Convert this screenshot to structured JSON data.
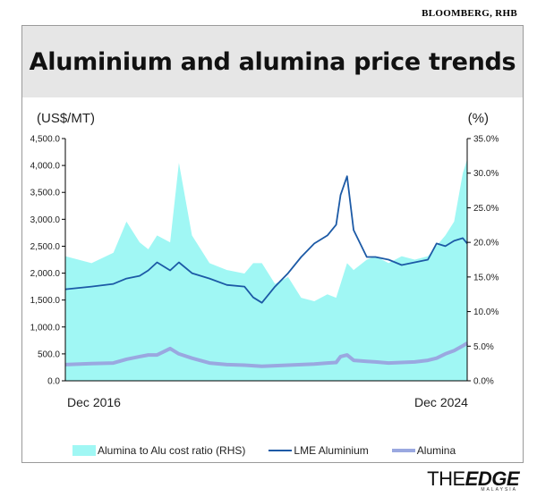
{
  "source": "BLOOMBERG, RHB",
  "title": "Aluminium and alumina price trends",
  "colors": {
    "ratio_fill": "#a0f7f4",
    "aluminium_line": "#1c5aa6",
    "alumina_line": "#9aa8e0",
    "title_band": "#e6e6e6"
  },
  "logo": {
    "brand_thin": "THE",
    "brand_bold": "EDGE",
    "sub": "MALAYSIA"
  },
  "chart_data": {
    "type": "line",
    "title": "Aluminium and alumina price trends",
    "ylabel": "(US$/MT)",
    "y2label": "(%)",
    "ylim": [
      0,
      4500
    ],
    "y2lim": [
      0,
      35
    ],
    "yticks": [
      "0.0",
      "500.0",
      "1,000.0",
      "1,500.0",
      "2,000.0",
      "2,500.0",
      "3,000.0",
      "3,500.0",
      "4,000.0",
      "4,500.0"
    ],
    "y2ticks": [
      "0.0%",
      "5.0%",
      "10.0%",
      "15.0%",
      "20.0%",
      "25.0%",
      "30.0%",
      "35.0%"
    ],
    "xlabels": [
      "Dec 2016",
      "Dec 2024"
    ],
    "grid": false,
    "legend_position": "bottom",
    "x": [
      2015.9,
      2016.5,
      2017.0,
      2017.3,
      2017.6,
      2017.8,
      2018.0,
      2018.3,
      2018.5,
      2018.8,
      2019.2,
      2019.6,
      2020.0,
      2020.2,
      2020.4,
      2020.7,
      2021.0,
      2021.3,
      2021.6,
      2021.9,
      2022.1,
      2022.2,
      2022.35,
      2022.5,
      2022.8,
      2023.0,
      2023.3,
      2023.6,
      2023.9,
      2024.2,
      2024.4,
      2024.6,
      2024.8,
      2025.0,
      2025.1
    ],
    "series": [
      {
        "name": "Alumina to Alu cost ratio (RHS)",
        "type": "area",
        "axis": "right",
        "values": [
          18.0,
          17.0,
          18.5,
          23.0,
          20.0,
          19.0,
          21.0,
          20.0,
          31.5,
          21.0,
          17.0,
          16.0,
          15.5,
          17.0,
          17.0,
          14.0,
          15.0,
          12.0,
          11.5,
          12.5,
          12.0,
          14.0,
          17.0,
          16.0,
          17.5,
          18.0,
          17.0,
          18.0,
          17.5,
          18.0,
          19.5,
          21.0,
          23.0,
          30.0,
          32.0
        ]
      },
      {
        "name": "LME Aluminium",
        "type": "line",
        "axis": "left",
        "values": [
          1700,
          1750,
          1800,
          1900,
          1950,
          2050,
          2200,
          2050,
          2200,
          2000,
          1900,
          1780,
          1750,
          1550,
          1450,
          1750,
          2000,
          2300,
          2550,
          2700,
          2900,
          3450,
          3800,
          2800,
          2300,
          2300,
          2250,
          2150,
          2200,
          2250,
          2550,
          2500,
          2600,
          2650,
          2550
        ]
      },
      {
        "name": "Alumina",
        "type": "line",
        "axis": "left",
        "values": [
          300,
          320,
          330,
          400,
          450,
          480,
          480,
          600,
          500,
          420,
          330,
          300,
          290,
          280,
          270,
          280,
          290,
          300,
          310,
          330,
          340,
          450,
          480,
          380,
          360,
          350,
          330,
          340,
          350,
          380,
          420,
          500,
          560,
          650,
          700
        ]
      }
    ]
  }
}
